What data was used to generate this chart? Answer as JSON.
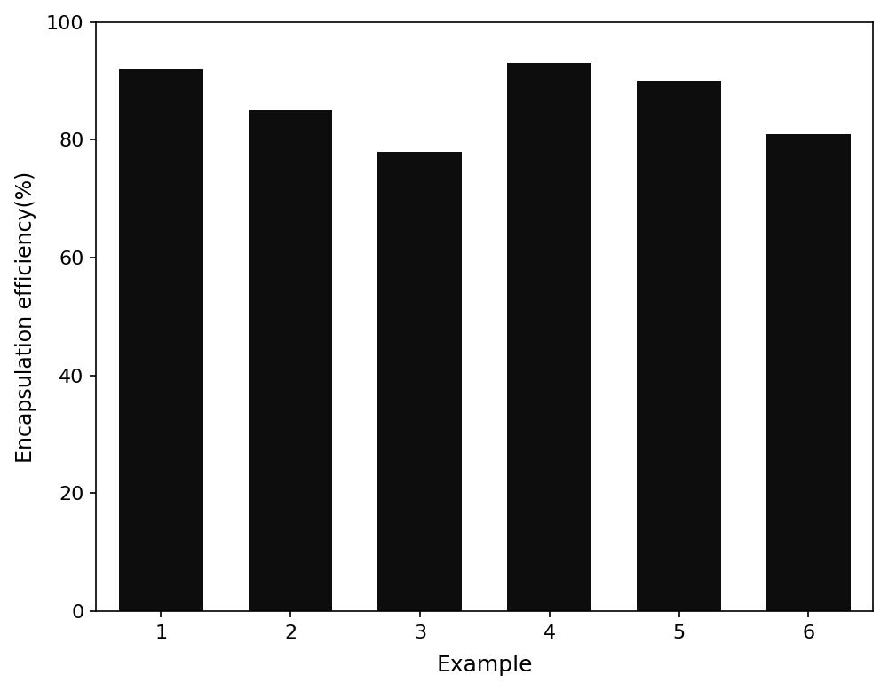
{
  "categories": [
    "1",
    "2",
    "3",
    "4",
    "5",
    "6"
  ],
  "values": [
    92,
    85,
    78,
    93,
    90,
    81
  ],
  "bar_color": "#0d0d0d",
  "xlabel": "Example",
  "ylabel": "Encapsulation efficiency(%)",
  "ylim": [
    0,
    100
  ],
  "yticks": [
    0,
    20,
    40,
    60,
    80,
    100
  ],
  "bar_width": 0.65,
  "xlabel_fontsize": 18,
  "ylabel_fontsize": 17,
  "tick_fontsize": 16,
  "background_color": "#ffffff",
  "axes_background": "#ffffff"
}
